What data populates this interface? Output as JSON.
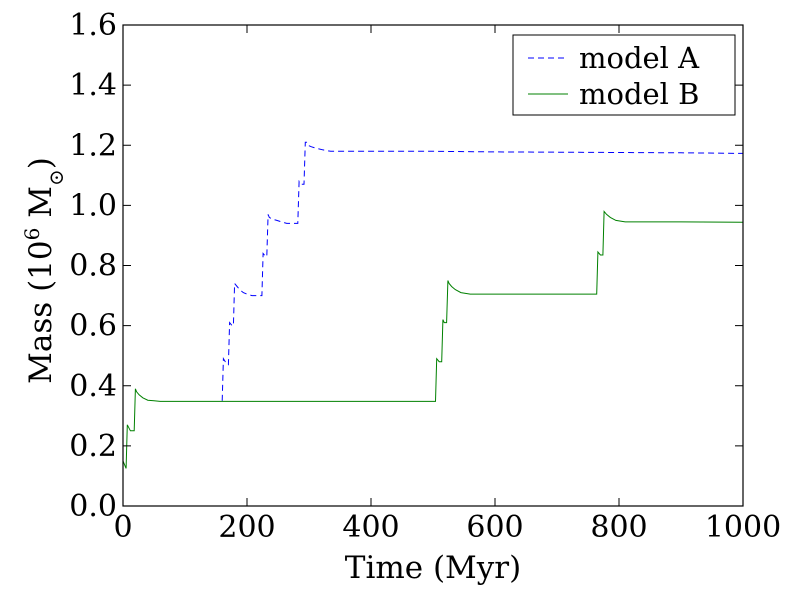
{
  "chart_data": {
    "type": "line",
    "title": "",
    "xlabel": "Time (Myr)",
    "ylabel_parts": {
      "main": "Mass (10",
      "exponent": "6",
      "unit": " M",
      "subscript": "⊙",
      "close": ")"
    },
    "xlim": [
      0,
      1000
    ],
    "ylim": [
      0.0,
      1.6
    ],
    "xticks": [
      0,
      200,
      400,
      600,
      800,
      1000
    ],
    "xtick_labels": [
      "0",
      "200",
      "400",
      "600",
      "800",
      "1000"
    ],
    "yticks": [
      0.0,
      0.2,
      0.4,
      0.6,
      0.8,
      1.0,
      1.2,
      1.4,
      1.6
    ],
    "ytick_labels": [
      "0.0",
      "0.2",
      "0.4",
      "0.6",
      "0.8",
      "1.0",
      "1.2",
      "1.4",
      "1.6"
    ],
    "grid": false,
    "legend_position": "top-right",
    "series": [
      {
        "name": "model A",
        "color": "#0000ff",
        "style": "dashed",
        "x": [
          160,
          162,
          168,
          170,
          172,
          176,
          178,
          180,
          184,
          188,
          194,
          200,
          208,
          216,
          222,
          224,
          226,
          230,
          232,
          234,
          236,
          240,
          248,
          256,
          264,
          272,
          280,
          282,
          284,
          288,
          290,
          292,
          294,
          296,
          298,
          304,
          312,
          322,
          335,
          360,
          400,
          500,
          600,
          700,
          800,
          900,
          1000
        ],
        "y": [
          0.35,
          0.49,
          0.47,
          0.47,
          0.61,
          0.6,
          0.6,
          0.74,
          0.73,
          0.72,
          0.71,
          0.705,
          0.7,
          0.7,
          0.7,
          0.7,
          0.84,
          0.83,
          0.83,
          0.97,
          0.96,
          0.955,
          0.95,
          0.945,
          0.94,
          0.94,
          0.94,
          0.94,
          1.08,
          1.07,
          1.07,
          1.07,
          1.21,
          1.21,
          1.2,
          1.195,
          1.19,
          1.185,
          1.18,
          1.18,
          1.18,
          1.18,
          1.178,
          1.177,
          1.176,
          1.175,
          1.173
        ]
      },
      {
        "name": "model B",
        "color": "#008000",
        "style": "solid",
        "x": [
          0,
          5,
          7,
          12,
          14,
          18,
          20,
          22,
          26,
          32,
          40,
          50,
          60,
          80,
          100,
          150,
          200,
          300,
          400,
          504,
          506,
          510,
          512,
          514,
          516,
          518,
          520,
          522,
          524,
          526,
          530,
          536,
          545,
          560,
          580,
          600,
          650,
          700,
          764,
          766,
          770,
          772,
          774,
          776,
          780,
          786,
          795,
          810,
          850,
          900,
          1000
        ],
        "y": [
          0.15,
          0.125,
          0.27,
          0.25,
          0.25,
          0.25,
          0.39,
          0.38,
          0.37,
          0.36,
          0.352,
          0.35,
          0.348,
          0.348,
          0.348,
          0.348,
          0.348,
          0.348,
          0.348,
          0.348,
          0.49,
          0.48,
          0.48,
          0.48,
          0.62,
          0.61,
          0.61,
          0.61,
          0.75,
          0.74,
          0.73,
          0.72,
          0.71,
          0.705,
          0.705,
          0.705,
          0.705,
          0.705,
          0.705,
          0.845,
          0.835,
          0.835,
          0.835,
          0.98,
          0.97,
          0.96,
          0.95,
          0.945,
          0.945,
          0.945,
          0.944
        ]
      }
    ]
  }
}
